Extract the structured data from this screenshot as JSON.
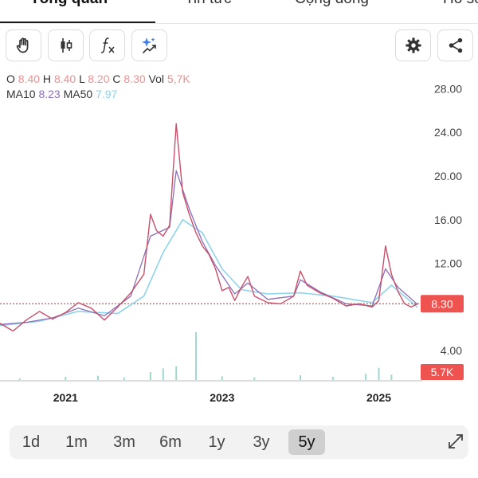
{
  "tabs": [
    "Tổng quan",
    "Tin tức",
    "Cộng đồng",
    "Hồ sơ"
  ],
  "toolbar": {
    "tools": [
      "hand-icon",
      "candlestick-icon",
      "function-icon",
      "ai-sparkle-icon"
    ],
    "right": [
      "settings-gear-icon",
      "share-icon"
    ]
  },
  "ohlc": {
    "o_label": "O",
    "o": "8.40",
    "h_label": "H",
    "h": "8.40",
    "l_label": "L",
    "l": "8.20",
    "c_label": "C",
    "c": "8.30",
    "vol_label": "Vol",
    "vol": "5,7K"
  },
  "ma": {
    "ma10_label": "MA10",
    "ma10": "8.23",
    "ma50_label": "MA50",
    "ma50": "7.97"
  },
  "chart_data": {
    "type": "line",
    "y_ticks": [
      "28.00",
      "24.00",
      "20.00",
      "16.00",
      "12.00",
      "8.00",
      "4.00"
    ],
    "y_tick_values": [
      28,
      24,
      20,
      16,
      12,
      8,
      4
    ],
    "ylim": [
      0,
      29.5
    ],
    "x_ticks": [
      "2021",
      "2023",
      "2025"
    ],
    "x_tick_dates": [
      "2021-01-01",
      "2023-01-01",
      "2025-01-01"
    ],
    "xlim": [
      "2020-03-01",
      "2025-07-15"
    ],
    "last_price_label": "8.30",
    "last_price": 8.3,
    "last_volume_label": "5.7K",
    "colors": {
      "up": "#26a69a",
      "down": "#ef5350",
      "ma10": "#8b6fb8",
      "ma50": "#8dd3ec",
      "price_tag": "#ef5350",
      "ref_line": "#c62828"
    },
    "series": [
      {
        "name": "Close",
        "points": [
          [
            "2020-03",
            6.5
          ],
          [
            "2020-05",
            5.8
          ],
          [
            "2020-07",
            6.8
          ],
          [
            "2020-09",
            7.6
          ],
          [
            "2020-11",
            6.9
          ],
          [
            "2021-01",
            7.5
          ],
          [
            "2021-03",
            8.4
          ],
          [
            "2021-05",
            7.9
          ],
          [
            "2021-07",
            6.8
          ],
          [
            "2021-09",
            8.0
          ],
          [
            "2021-11",
            9.3
          ],
          [
            "2022-01",
            11.0
          ],
          [
            "2022-02",
            16.5
          ],
          [
            "2022-03",
            15.0
          ],
          [
            "2022-04",
            14.5
          ],
          [
            "2022-05",
            15.5
          ],
          [
            "2022-06",
            24.8
          ],
          [
            "2022-07",
            18.5
          ],
          [
            "2022-08",
            16.5
          ],
          [
            "2022-09",
            14.8
          ],
          [
            "2022-10",
            13.6
          ],
          [
            "2022-11",
            12.8
          ],
          [
            "2022-12",
            11.5
          ],
          [
            "2023-01",
            9.5
          ],
          [
            "2023-02",
            9.8
          ],
          [
            "2023-03",
            8.6
          ],
          [
            "2023-04",
            9.8
          ],
          [
            "2023-05",
            10.8
          ],
          [
            "2023-06",
            9.0
          ],
          [
            "2023-08",
            8.4
          ],
          [
            "2023-10",
            8.3
          ],
          [
            "2023-12",
            9.0
          ],
          [
            "2024-01",
            11.3
          ],
          [
            "2024-02",
            10.0
          ],
          [
            "2024-04",
            9.3
          ],
          [
            "2024-06",
            8.8
          ],
          [
            "2024-08",
            8.1
          ],
          [
            "2024-10",
            8.3
          ],
          [
            "2024-12",
            8.0
          ],
          [
            "2025-01",
            8.6
          ],
          [
            "2025-02",
            13.6
          ],
          [
            "2025-03",
            11.0
          ],
          [
            "2025-04",
            9.4
          ],
          [
            "2025-05",
            8.3
          ],
          [
            "2025-06",
            8.0
          ],
          [
            "2025-07",
            8.3
          ]
        ]
      },
      {
        "name": "MA10",
        "points": [
          [
            "2020-03",
            6.4
          ],
          [
            "2020-07",
            6.6
          ],
          [
            "2020-11",
            7.0
          ],
          [
            "2021-03",
            7.9
          ],
          [
            "2021-07",
            7.2
          ],
          [
            "2021-11",
            9.0
          ],
          [
            "2022-02",
            14.5
          ],
          [
            "2022-05",
            15.3
          ],
          [
            "2022-06",
            20.5
          ],
          [
            "2022-08",
            17.0
          ],
          [
            "2022-10",
            14.0
          ],
          [
            "2022-12",
            11.8
          ],
          [
            "2023-03",
            9.2
          ],
          [
            "2023-05",
            10.2
          ],
          [
            "2023-08",
            8.7
          ],
          [
            "2023-12",
            9.0
          ],
          [
            "2024-01",
            10.5
          ],
          [
            "2024-04",
            9.4
          ],
          [
            "2024-08",
            8.3
          ],
          [
            "2024-12",
            8.1
          ],
          [
            "2025-02",
            11.5
          ],
          [
            "2025-04",
            9.8
          ],
          [
            "2025-07",
            8.23
          ]
        ]
      },
      {
        "name": "MA50",
        "points": [
          [
            "2020-03",
            6.3
          ],
          [
            "2020-09",
            6.7
          ],
          [
            "2021-03",
            7.6
          ],
          [
            "2021-09",
            7.4
          ],
          [
            "2022-01",
            9.0
          ],
          [
            "2022-04",
            13.0
          ],
          [
            "2022-07",
            16.0
          ],
          [
            "2022-10",
            14.8
          ],
          [
            "2023-01",
            11.5
          ],
          [
            "2023-04",
            9.6
          ],
          [
            "2023-08",
            9.2
          ],
          [
            "2024-01",
            9.3
          ],
          [
            "2024-06",
            9.0
          ],
          [
            "2024-12",
            8.4
          ],
          [
            "2025-03",
            10.0
          ],
          [
            "2025-07",
            7.97
          ]
        ]
      }
    ],
    "volume": [
      [
        "2020-06",
        0.3
      ],
      [
        "2021-01",
        0.6
      ],
      [
        "2021-06",
        0.8
      ],
      [
        "2021-10",
        0.5
      ],
      [
        "2022-02",
        1.5
      ],
      [
        "2022-04",
        2.2
      ],
      [
        "2022-06",
        2.6
      ],
      [
        "2022-09",
        9.0
      ],
      [
        "2023-01",
        0.7
      ],
      [
        "2023-06",
        0.5
      ],
      [
        "2024-01",
        0.9
      ],
      [
        "2024-06",
        0.6
      ],
      [
        "2024-11",
        1.2
      ],
      [
        "2025-01",
        2.3
      ],
      [
        "2025-03",
        1.0
      ]
    ]
  },
  "periods": [
    "1d",
    "1m",
    "3m",
    "6m",
    "1y",
    "3y",
    "5y"
  ],
  "active_period": "5y"
}
